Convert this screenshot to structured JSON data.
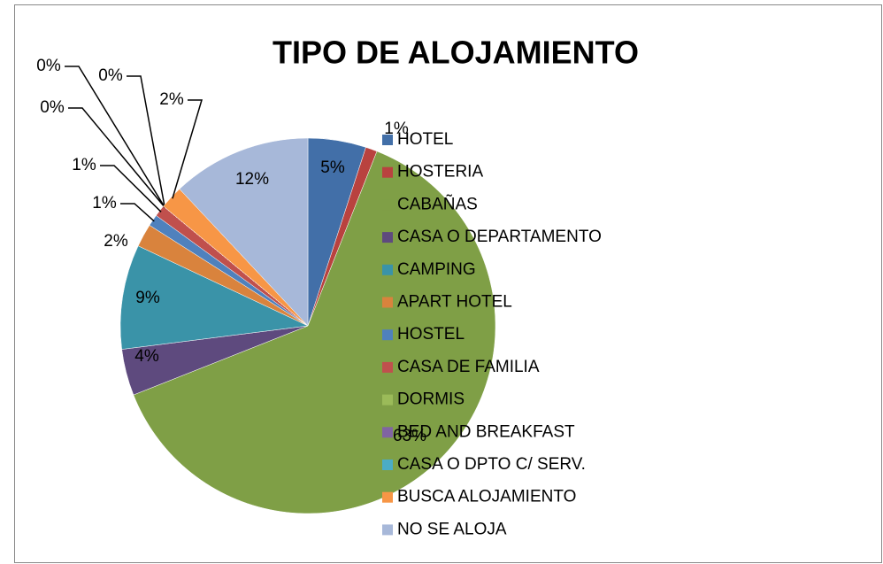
{
  "chart_data": {
    "type": "pie",
    "title": "TIPO DE ALOJAMIENTO",
    "categories": [
      "HOTEL",
      "HOSTERIA",
      "CABAÑAS",
      "CASA O DEPARTAMENTO",
      "CAMPING",
      "APART HOTEL",
      "HOSTEL",
      "CASA DE FAMILIA",
      "DORMIS",
      "BED AND BREAKFAST",
      "CASA O DPTO C/ SERV.",
      "BUSCA ALOJAMIENTO",
      "NO SE ALOJA"
    ],
    "values": [
      5,
      1,
      63,
      4,
      9,
      2,
      1,
      1,
      0,
      0,
      0,
      2,
      12
    ],
    "value_labels": [
      "5%",
      "1%",
      "63%",
      "4%",
      "9%",
      "2%",
      "1%",
      "1%",
      "0%",
      "0%",
      "0%",
      "2%",
      "12%"
    ],
    "colors": [
      "#426FA8",
      "#B9423F",
      "#7F9F46",
      "#5E4A7E",
      "#3A93A8",
      "#D9833D",
      "#4F81BD",
      "#C0504D",
      "#9BBB59",
      "#8064A2",
      "#4BACC6",
      "#F79646",
      "#A7B8D9"
    ],
    "legend": "right"
  }
}
